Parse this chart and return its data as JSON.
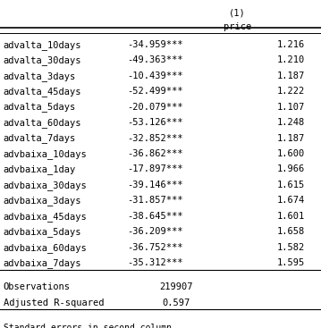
{
  "col_header_1": "(1)",
  "col_header_2": "price",
  "rows": [
    [
      "advalta_10days",
      "-34.959***",
      "1.216"
    ],
    [
      "advalta_30days",
      "-49.363***",
      "1.210"
    ],
    [
      "advalta_3days",
      "-10.439***",
      "1.187"
    ],
    [
      "advalta_45days",
      "-52.499***",
      "1.222"
    ],
    [
      "advalta_5days",
      "-20.079***",
      "1.107"
    ],
    [
      "advalta_60days",
      "-53.126***",
      "1.248"
    ],
    [
      "advalta_7days",
      "-32.852***",
      "1.187"
    ],
    [
      "advbaixa_10days",
      "-36.862***",
      "1.600"
    ],
    [
      "advbaixa_1day",
      "-17.897***",
      "1.966"
    ],
    [
      "advbaixa_30days",
      "-39.146***",
      "1.615"
    ],
    [
      "advbaixa_3days",
      "-31.857***",
      "1.674"
    ],
    [
      "advbaixa_45days",
      "-38.645***",
      "1.601"
    ],
    [
      "advbaixa_5days",
      "-36.209***",
      "1.658"
    ],
    [
      "advbaixa_60days",
      "-36.752***",
      "1.582"
    ],
    [
      "advbaixa_7days",
      "-35.312***",
      "1.595"
    ]
  ],
  "footer_rows": [
    [
      "Observations",
      "219907",
      ""
    ],
    [
      "Adjusted R-squared",
      "0.597",
      ""
    ]
  ],
  "footnote": "Standard errors in second column",
  "font_family": "monospace",
  "font_size": 7.5,
  "bg_color": "#ffffff",
  "text_color": "#000000"
}
